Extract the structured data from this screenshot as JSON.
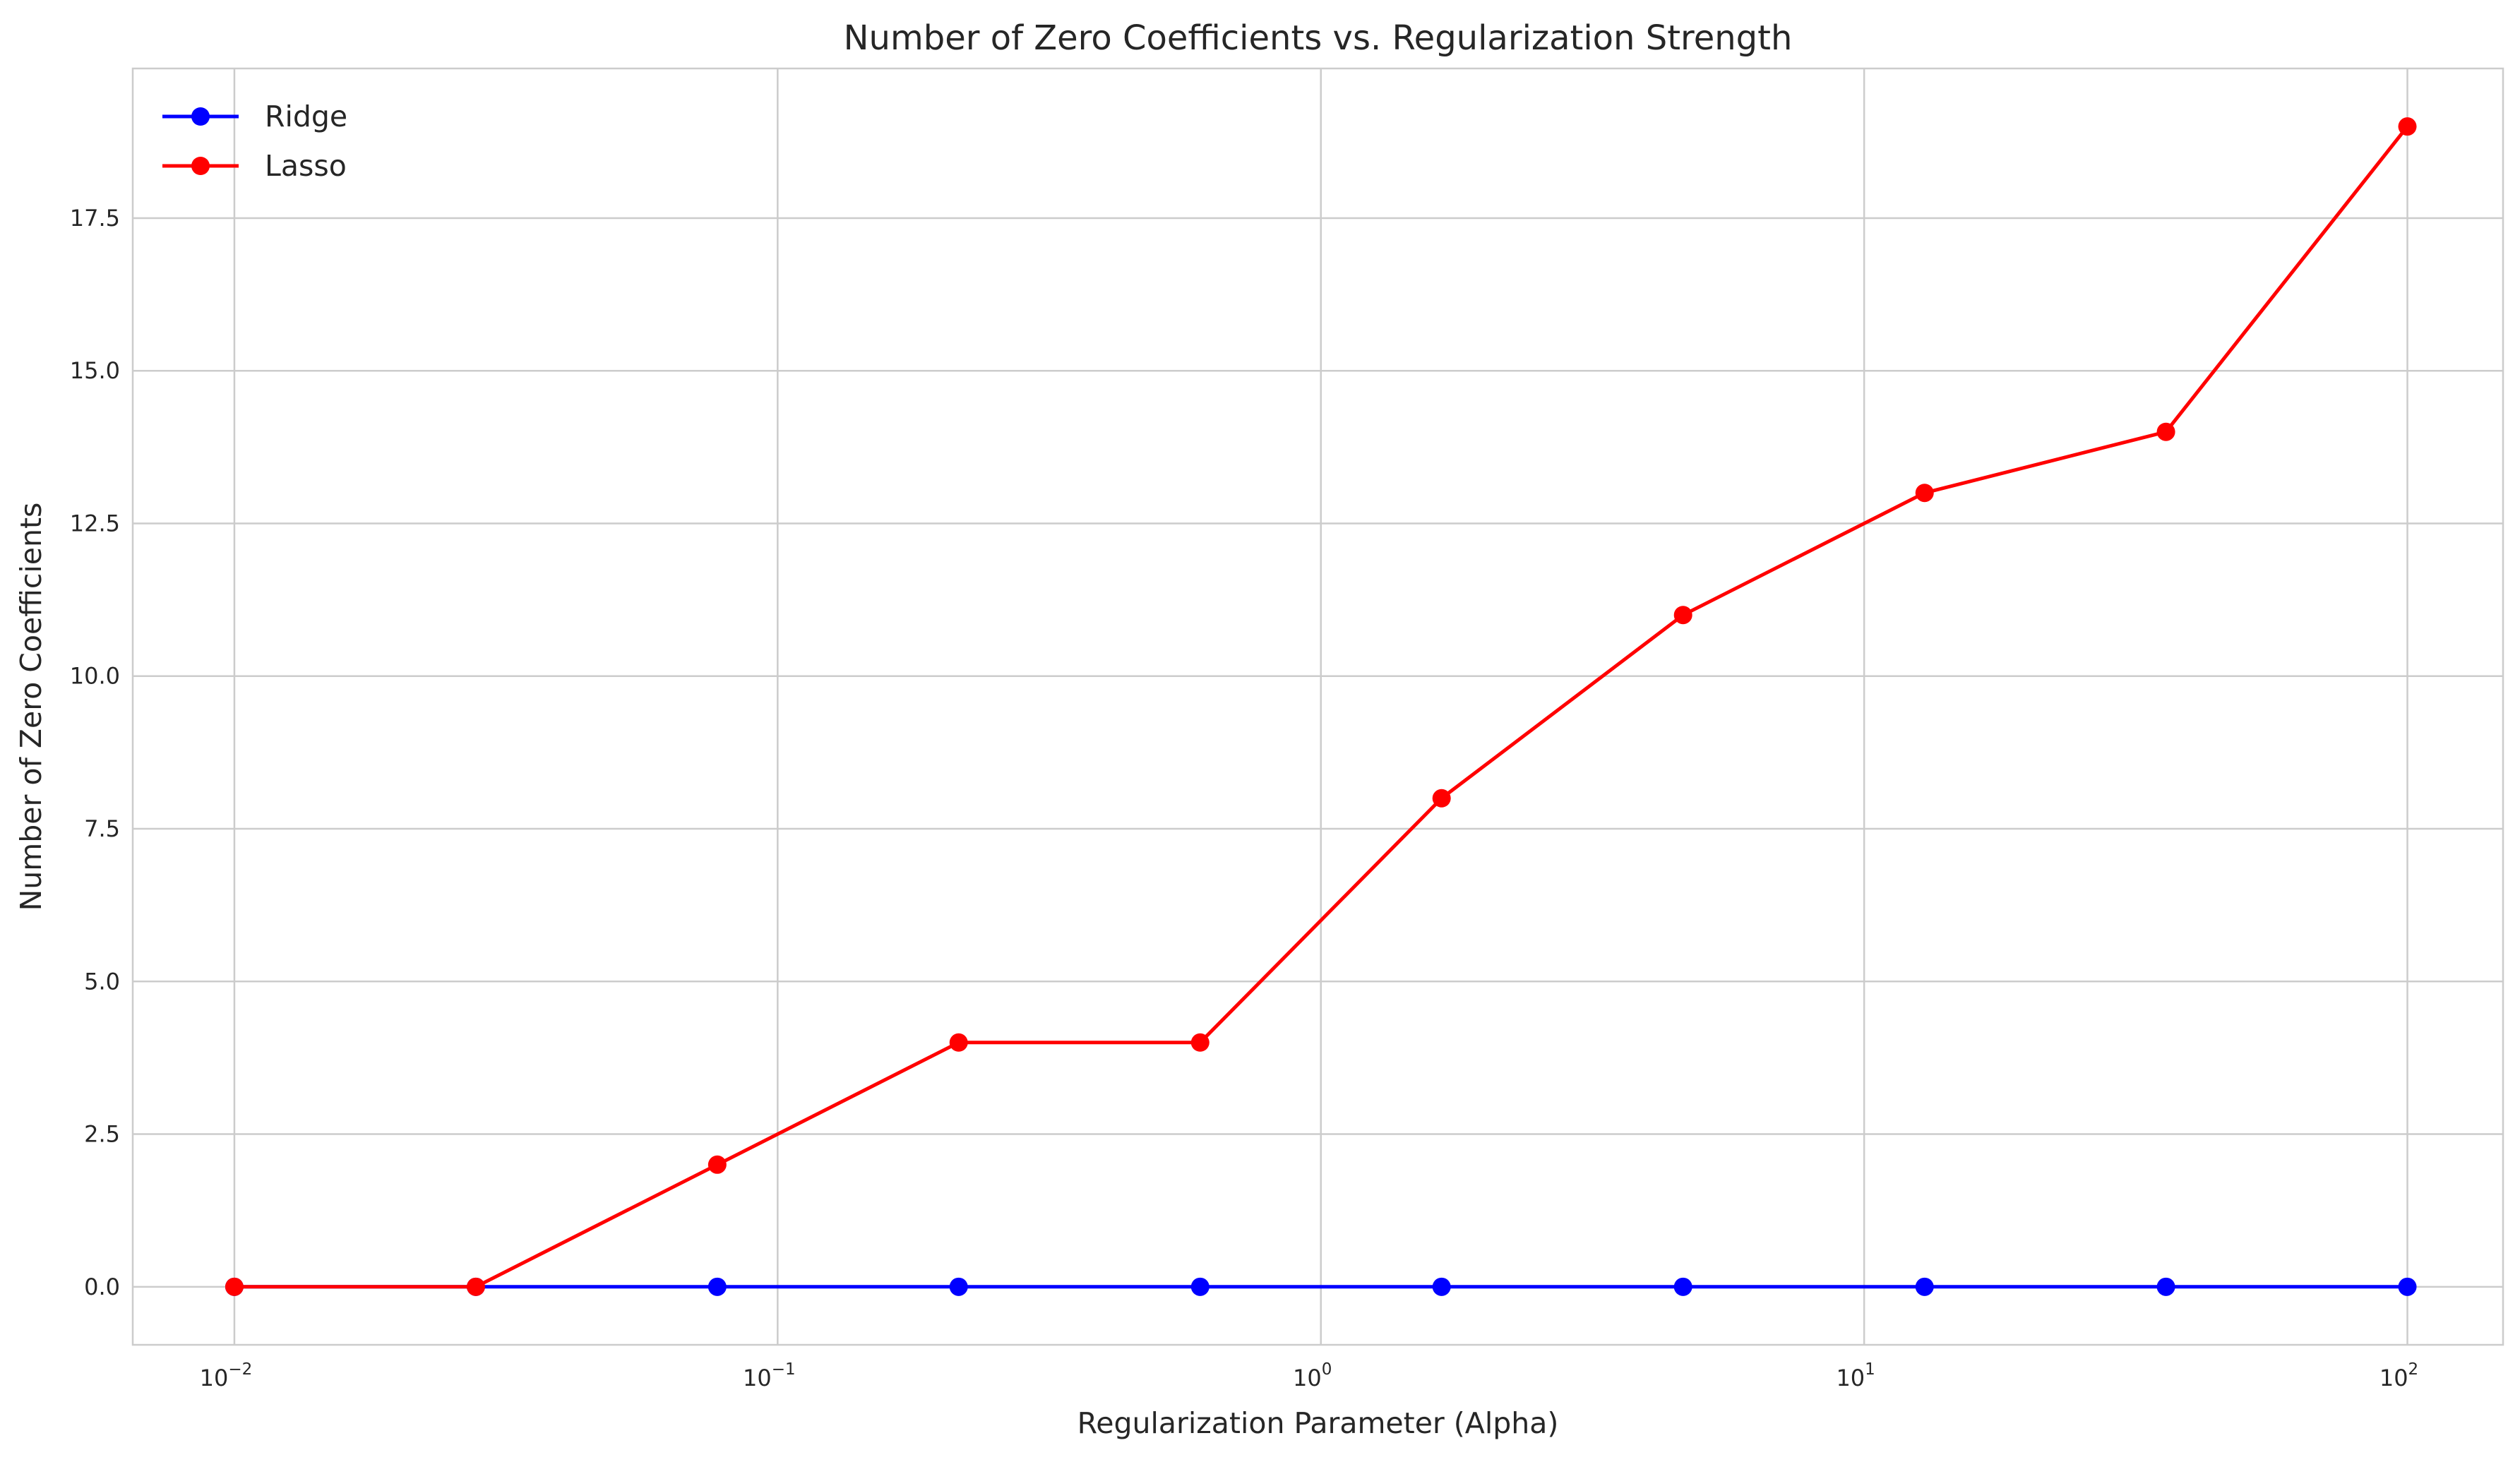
{
  "chart_data": {
    "type": "line",
    "title": "Number of Zero Coefficients vs. Regularization Strength",
    "xlabel": "Regularization Parameter (Alpha)",
    "ylabel": "Number of Zero Coefficients",
    "xscale": "log",
    "xlim": [
      0.0065,
      150
    ],
    "ylim": [
      -0.95,
      19.95
    ],
    "xticks": [
      {
        "value": 0.01,
        "base": "10",
        "exp": "−2"
      },
      {
        "value": 0.1,
        "base": "10",
        "exp": "−1"
      },
      {
        "value": 1,
        "base": "10",
        "exp": "0"
      },
      {
        "value": 10,
        "base": "10",
        "exp": "1"
      },
      {
        "value": 100,
        "base": "10",
        "exp": "2"
      }
    ],
    "yticks": [
      {
        "value": 0,
        "label": "0.0"
      },
      {
        "value": 2.5,
        "label": "2.5"
      },
      {
        "value": 5,
        "label": "5.0"
      },
      {
        "value": 7.5,
        "label": "7.5"
      },
      {
        "value": 10,
        "label": "10.0"
      },
      {
        "value": 12.5,
        "label": "12.5"
      },
      {
        "value": 15,
        "label": "15.0"
      },
      {
        "value": 17.5,
        "label": "17.5"
      }
    ],
    "grid": true,
    "legend_position": "top-left",
    "x": [
      0.01,
      0.02783,
      0.07743,
      0.2154,
      0.5995,
      1.668,
      4.642,
      12.92,
      35.94,
      100
    ],
    "series": [
      {
        "name": "Ridge",
        "color": "#0000ff",
        "values": [
          0,
          0,
          0,
          0,
          0,
          0,
          0,
          0,
          0,
          0
        ]
      },
      {
        "name": "Lasso",
        "color": "#ff0000",
        "values": [
          0,
          0,
          2,
          4,
          4,
          8,
          11,
          13,
          14,
          19
        ]
      }
    ]
  }
}
